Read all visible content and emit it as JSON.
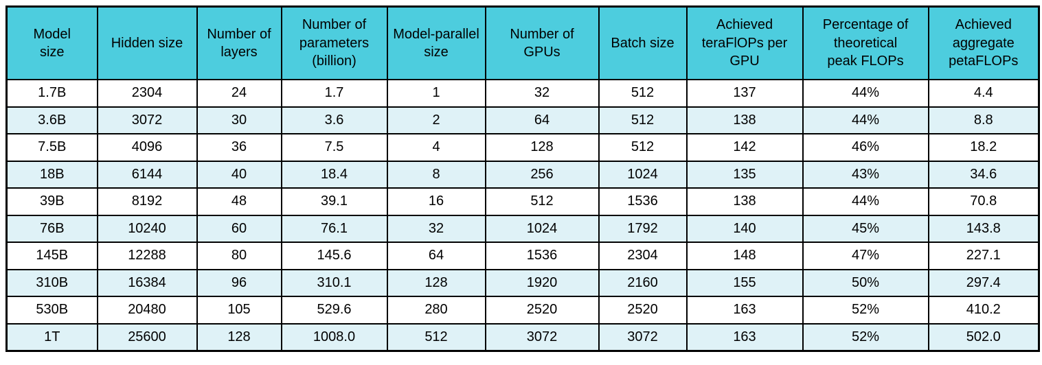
{
  "table": {
    "name": "model-scaling-performance-table",
    "columns": [
      "Model\nsize",
      "Hidden size",
      "Number of\nlayers",
      "Number of\nparameters\n(billion)",
      "Model-parallel\nsize",
      "Number of\nGPUs",
      "Batch size",
      "Achieved\nteraFlOPs per\nGPU",
      "Percentage of\ntheoretical\npeak FLOPs",
      "Achieved\naggregate\npetaFLOPs"
    ],
    "rows": [
      [
        "1.7B",
        "2304",
        "24",
        "1.7",
        "1",
        "32",
        "512",
        "137",
        "44%",
        "4.4"
      ],
      [
        "3.6B",
        "3072",
        "30",
        "3.6",
        "2",
        "64",
        "512",
        "138",
        "44%",
        "8.8"
      ],
      [
        "7.5B",
        "4096",
        "36",
        "7.5",
        "4",
        "128",
        "512",
        "142",
        "46%",
        "18.2"
      ],
      [
        "18B",
        "6144",
        "40",
        "18.4",
        "8",
        "256",
        "1024",
        "135",
        "43%",
        "34.6"
      ],
      [
        "39B",
        "8192",
        "48",
        "39.1",
        "16",
        "512",
        "1536",
        "138",
        "44%",
        "70.8"
      ],
      [
        "76B",
        "10240",
        "60",
        "76.1",
        "32",
        "1024",
        "1792",
        "140",
        "45%",
        "143.8"
      ],
      [
        "145B",
        "12288",
        "80",
        "145.6",
        "64",
        "1536",
        "2304",
        "148",
        "47%",
        "227.1"
      ],
      [
        "310B",
        "16384",
        "96",
        "310.1",
        "128",
        "1920",
        "2160",
        "155",
        "50%",
        "297.4"
      ],
      [
        "530B",
        "20480",
        "105",
        "529.6",
        "280",
        "2520",
        "2520",
        "163",
        "52%",
        "410.2"
      ],
      [
        "1T",
        "25600",
        "128",
        "1008.0",
        "512",
        "3072",
        "3072",
        "163",
        "52%",
        "502.0"
      ]
    ],
    "colors": {
      "header_bg": "#4dcdde",
      "alt_row_bg": "#dff2f7",
      "row_bg": "#ffffff",
      "border": "#000000",
      "text": "#000000"
    }
  }
}
